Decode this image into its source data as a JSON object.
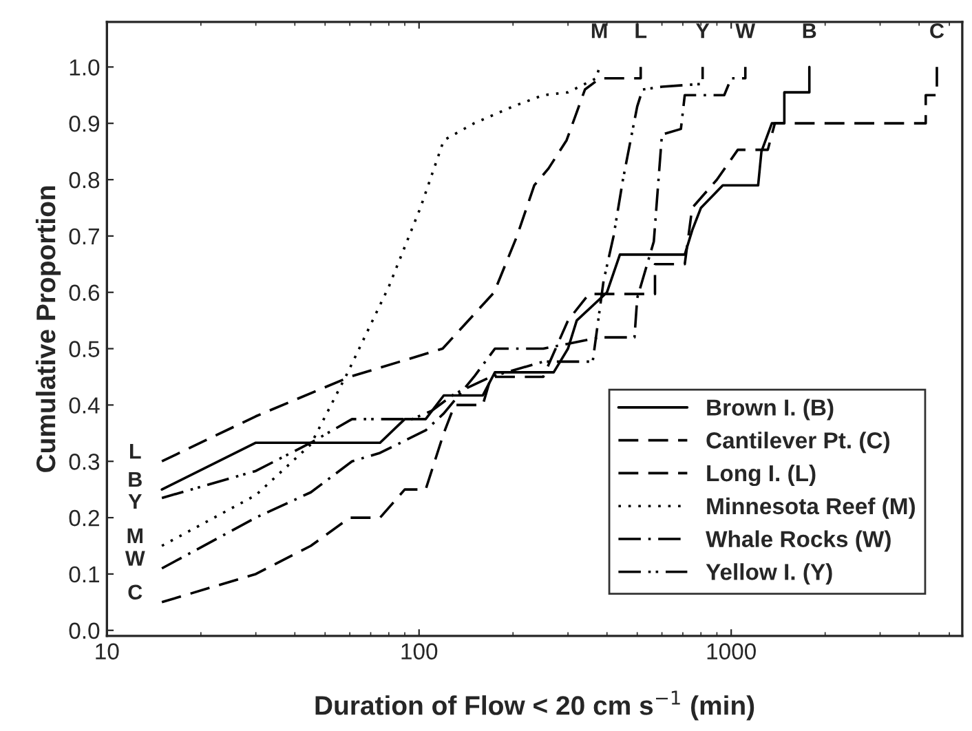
{
  "chart_data": {
    "type": "line",
    "xlabel": "Duration of Flow < 20 cm s$^{−1}$ (min)",
    "ylabel": "Cumulative Proportion",
    "log": "x",
    "xlim": [
      10,
      5500
    ],
    "xticks": [
      10,
      100,
      1000
    ],
    "ylim": [
      -0.01,
      1.08
    ],
    "yticks": [
      {
        "value": 0,
        "label": "0.0"
      },
      {
        "value": 0.1,
        "label": "0.1"
      },
      {
        "value": 0.2,
        "label": "0.2"
      },
      {
        "value": 0.3,
        "label": "0.3"
      },
      {
        "value": 0.4,
        "label": "0.4"
      },
      {
        "value": 0.5,
        "label": "0.5"
      },
      {
        "value": 0.6,
        "label": "0.6"
      },
      {
        "value": 0.7,
        "label": "0.7"
      },
      {
        "value": 0.8,
        "label": "0.8"
      },
      {
        "value": 0.9,
        "label": "0.9"
      },
      {
        "value": 1.0,
        "label": "1.0"
      }
    ],
    "grid": false,
    "legend": "bottom right",
    "marker": "none",
    "series": [
      {
        "name": "Brown I. (B)",
        "color": "#000000",
        "line_style": "solid",
        "x": [
          15,
          30,
          75,
          90,
          105,
          120,
          160,
          175,
          270,
          300,
          320,
          400,
          440,
          710,
          750,
          800,
          940,
          1220,
          1250,
          1350,
          1480,
          1480,
          1780,
          1780
        ],
        "values": [
          0.25,
          0.333,
          0.333,
          0.375,
          0.375,
          0.417,
          0.417,
          0.458,
          0.458,
          0.5,
          0.55,
          0.6,
          0.667,
          0.667,
          0.71,
          0.75,
          0.79,
          0.79,
          0.85,
          0.9,
          0.9,
          0.955,
          0.955,
          1.0
        ]
      },
      {
        "name": "Cantilever Pt. (C)",
        "color": "#000000",
        "line_style": "dashed",
        "x": [
          15,
          30,
          45,
          60,
          75,
          90,
          105,
          120,
          130,
          160,
          170,
          250,
          300,
          350,
          570,
          570,
          710,
          750,
          900,
          1050,
          1310,
          1380,
          4200,
          4200,
          4560,
          4560
        ],
        "values": [
          0.05,
          0.1,
          0.15,
          0.2,
          0.2,
          0.25,
          0.25,
          0.35,
          0.4,
          0.4,
          0.45,
          0.45,
          0.55,
          0.597,
          0.597,
          0.65,
          0.65,
          0.75,
          0.8,
          0.853,
          0.853,
          0.9,
          0.9,
          0.95,
          0.95,
          1.0
        ]
      },
      {
        "name": "Long I. (L)",
        "color": "#000000",
        "line_style": "dashed",
        "x": [
          15,
          30,
          60,
          119,
          174,
          206,
          234,
          260,
          297,
          340,
          380,
          513,
          513
        ],
        "values": [
          0.3,
          0.38,
          0.45,
          0.5,
          0.6,
          0.7,
          0.79,
          0.82,
          0.87,
          0.96,
          0.98,
          0.98,
          1.0
        ]
      },
      {
        "name": "Minnesota Reef (M)",
        "color": "#000000",
        "line_style": "dotted",
        "x": [
          15,
          30,
          45,
          59,
          80,
          101,
          120,
          150,
          200,
          250,
          300,
          340,
          370,
          378
        ],
        "values": [
          0.15,
          0.24,
          0.33,
          0.457,
          0.61,
          0.75,
          0.87,
          0.9,
          0.93,
          0.95,
          0.955,
          0.97,
          0.98,
          1.0
        ]
      },
      {
        "name": "Whale Rocks (W)",
        "color": "#000000",
        "line_style": "dashdot",
        "x": [
          15,
          30,
          45,
          61,
          75,
          105,
          120,
          150,
          175,
          250,
          380,
          490,
          500,
          565,
          600,
          690,
          710,
          950,
          1000,
          1110,
          1110
        ],
        "values": [
          0.11,
          0.2,
          0.245,
          0.3,
          0.315,
          0.355,
          0.385,
          0.45,
          0.5,
          0.5,
          0.52,
          0.52,
          0.59,
          0.69,
          0.88,
          0.89,
          0.95,
          0.95,
          0.98,
          0.98,
          1.0
        ]
      },
      {
        "name": "Yellow I. (Y)",
        "color": "#000000",
        "line_style": "dashdotdot",
        "x": [
          15,
          30,
          45,
          61,
          95,
          110,
          130,
          170,
          250,
          360,
          390,
          420,
          450,
          480,
          500,
          520,
          600,
          810,
          810
        ],
        "values": [
          0.235,
          0.283,
          0.333,
          0.375,
          0.375,
          0.39,
          0.42,
          0.45,
          0.477,
          0.477,
          0.62,
          0.7,
          0.8,
          0.88,
          0.93,
          0.96,
          0.965,
          0.97,
          1.0
        ]
      }
    ],
    "annotations": [
      {
        "text": "L",
        "x": 15,
        "y": 0.3
      },
      {
        "text": "B",
        "x": 15,
        "y": 0.25
      },
      {
        "text": "Y",
        "x": 15,
        "y": 0.235
      },
      {
        "text": "M",
        "x": 15,
        "y": 0.15
      },
      {
        "text": "W",
        "x": 15,
        "y": 0.11
      },
      {
        "text": "C",
        "x": 15,
        "y": 0.05
      },
      {
        "text": "M",
        "x": 378,
        "y": 1.0
      },
      {
        "text": "L",
        "x": 513,
        "y": 1.0
      },
      {
        "text": "Y",
        "x": 810,
        "y": 1.0
      },
      {
        "text": "W",
        "x": 1110,
        "y": 1.0
      },
      {
        "text": "B",
        "x": 1780,
        "y": 1.0
      },
      {
        "text": "C",
        "x": 4560,
        "y": 1.0
      }
    ]
  }
}
